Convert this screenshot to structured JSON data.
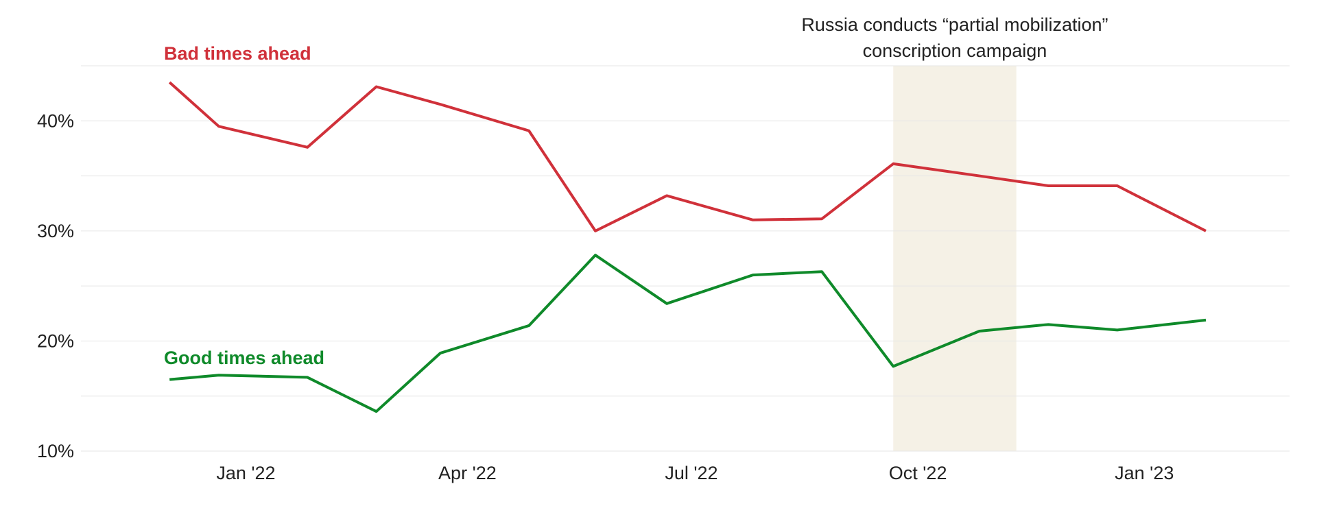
{
  "chart_data": {
    "type": "line",
    "x": [
      "2021-12-01",
      "2021-12-21",
      "2022-01-26",
      "2022-02-23",
      "2022-03-21",
      "2022-04-26",
      "2022-05-23",
      "2022-06-21",
      "2022-07-26",
      "2022-08-23",
      "2022-09-21",
      "2022-10-26",
      "2022-11-23",
      "2022-12-21",
      "2023-01-26"
    ],
    "series": [
      {
        "name": "Bad times ahead",
        "color": "#d0313a",
        "values": [
          43.5,
          39.5,
          37.6,
          43.1,
          41.5,
          39.1,
          30.0,
          33.2,
          31.0,
          31.1,
          36.1,
          35.0,
          34.1,
          34.1,
          30.0
        ]
      },
      {
        "name": "Good times ahead",
        "color": "#0f8a2a",
        "values": [
          16.5,
          16.9,
          16.7,
          13.6,
          18.9,
          21.4,
          27.8,
          23.4,
          26.0,
          26.3,
          17.7,
          20.9,
          21.5,
          21.0,
          21.9
        ]
      }
    ],
    "xlim": [
      "2021-10-26",
      "2023-03-01"
    ],
    "xticks": [
      {
        "value": "2022-01-01",
        "label": "Jan '22"
      },
      {
        "value": "2022-04-01",
        "label": "Apr '22"
      },
      {
        "value": "2022-07-01",
        "label": "Jul '22"
      },
      {
        "value": "2022-10-01",
        "label": "Oct '22"
      },
      {
        "value": "2023-01-01",
        "label": "Jan '23"
      }
    ],
    "ylim": [
      10,
      45
    ],
    "yticks": [
      {
        "value": 10,
        "label": "10%"
      },
      {
        "value": 20,
        "label": "20%"
      },
      {
        "value": 30,
        "label": "30%"
      },
      {
        "value": 40,
        "label": "40%"
      }
    ],
    "ygrid_minor": [
      15,
      25,
      35,
      45
    ],
    "grid": true,
    "annotations": [
      {
        "text": [
          "Russia conducts “partial mobilization”",
          "conscription campaign"
        ],
        "start": "2022-09-21",
        "end": "2022-11-10",
        "color": "#f5f1e6"
      }
    ]
  }
}
